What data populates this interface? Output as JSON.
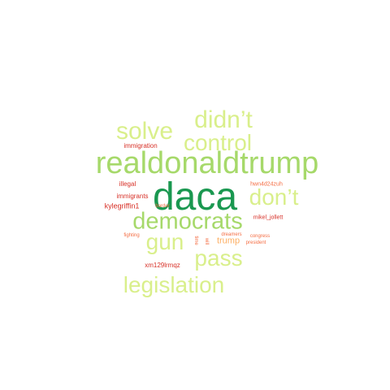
{
  "words": [
    {
      "id": "daca",
      "text": "daca",
      "color": "#1a9850"
    },
    {
      "id": "realdonaldtrump",
      "text": "realdonaldtrump",
      "color": "#a6d96a"
    },
    {
      "id": "democrats",
      "text": "democrats",
      "color": "#a6d96a"
    },
    {
      "id": "control",
      "text": "control",
      "color": "#d9ef8b"
    },
    {
      "id": "didnt",
      "text": "didn’t",
      "color": "#d9ef8b"
    },
    {
      "id": "solve",
      "text": "solve",
      "color": "#d9ef8b"
    },
    {
      "id": "dont",
      "text": "don’t",
      "color": "#d9ef8b"
    },
    {
      "id": "gun",
      "text": "gun",
      "color": "#d9ef8b"
    },
    {
      "id": "pass",
      "text": "pass",
      "color": "#d9ef8b"
    },
    {
      "id": "legislation",
      "text": "legislation",
      "color": "#d9ef8b"
    },
    {
      "id": "trump",
      "text": "trump",
      "color": "#fdae61"
    },
    {
      "id": "immigration",
      "text": "immigration",
      "color": "#d73027"
    },
    {
      "id": "illegal",
      "text": "illegal",
      "color": "#d73027"
    },
    {
      "id": "immigrants",
      "text": "immigrants",
      "color": "#d73027"
    },
    {
      "id": "kylegriffin1",
      "text": "kylegriffin1",
      "color": "#d73027"
    },
    {
      "id": "border",
      "text": "border",
      "color": "#f46d43"
    },
    {
      "id": "hwn4d24zuh",
      "text": "hwn4d24zuh",
      "color": "#f46d43"
    },
    {
      "id": "mikel_jollett",
      "text": "mikel_jollett",
      "color": "#d73027"
    },
    {
      "id": "fighting",
      "text": "fighting",
      "color": "#f46d43"
    },
    {
      "id": "dreamers",
      "text": "dreamers",
      "color": "#f46d43"
    },
    {
      "id": "congress",
      "text": "congress",
      "color": "#f46d43"
    },
    {
      "id": "president",
      "text": "president",
      "color": "#f46d43"
    },
    {
      "id": "time",
      "text": "time",
      "color": "#f46d43"
    },
    {
      "id": "will",
      "text": "will",
      "color": "#f46d43"
    },
    {
      "id": "xm129lrmqz",
      "text": "xm129lrmqz",
      "color": "#d73027"
    }
  ]
}
